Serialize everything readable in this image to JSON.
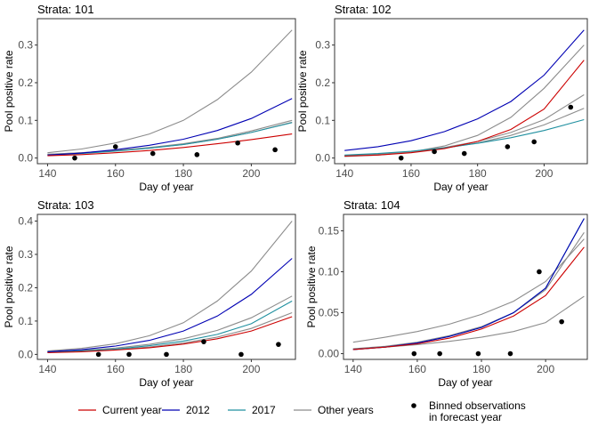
{
  "figure": {
    "xlabel": "Day of year",
    "ylabel": "Pool positive rate"
  },
  "legend": {
    "items": [
      {
        "label": "Current year",
        "color": "#cc0000",
        "kind": "line"
      },
      {
        "label": "2012",
        "color": "#0000b3",
        "kind": "line"
      },
      {
        "label": "2017",
        "color": "#2090a0",
        "kind": "line"
      },
      {
        "label": "Other years",
        "color": "#8c8c8c",
        "kind": "line"
      },
      {
        "label": "Binned observations",
        "label2": "in forecast year",
        "color": "#000000",
        "kind": "point"
      }
    ]
  },
  "chart_data": [
    {
      "type": "line",
      "title": "Strata: 101",
      "xlabel": "Day of year",
      "ylabel": "Pool positive rate",
      "xlim": [
        137,
        213
      ],
      "ylim": [
        -0.015,
        0.37
      ],
      "xticks": [
        140,
        160,
        180,
        200
      ],
      "yticks": [
        0.0,
        0.1,
        0.2,
        0.3
      ],
      "ytick_labels": [
        "0.0",
        "0.1",
        "0.2",
        "0.3"
      ],
      "x": [
        140,
        150,
        160,
        170,
        180,
        190,
        200,
        212
      ],
      "series": [
        {
          "group": "other",
          "values": [
            0.01,
            0.014,
            0.02,
            0.028,
            0.038,
            0.052,
            0.072,
            0.1
          ]
        },
        {
          "group": "other",
          "values": [
            0.01,
            0.014,
            0.019,
            0.026,
            0.036,
            0.05,
            0.068,
            0.095
          ]
        },
        {
          "group": "other",
          "values": [
            0.014,
            0.024,
            0.04,
            0.064,
            0.1,
            0.155,
            0.228,
            0.34
          ]
        },
        {
          "name": "2017",
          "values": [
            0.008,
            0.012,
            0.018,
            0.026,
            0.036,
            0.05,
            0.068,
            0.094
          ]
        },
        {
          "name": "2012",
          "values": [
            0.008,
            0.013,
            0.022,
            0.034,
            0.05,
            0.073,
            0.105,
            0.158
          ]
        },
        {
          "name": "Current year",
          "values": [
            0.006,
            0.009,
            0.014,
            0.02,
            0.028,
            0.038,
            0.049,
            0.064
          ]
        }
      ],
      "observations": {
        "x": [
          148,
          160,
          171,
          184,
          196,
          207
        ],
        "y": [
          0.0,
          0.03,
          0.012,
          0.009,
          0.04,
          0.022
        ]
      }
    },
    {
      "type": "line",
      "title": "Strata: 102",
      "xlabel": "Day of year",
      "ylabel": "Pool positive rate",
      "xlim": [
        137,
        213
      ],
      "ylim": [
        -0.015,
        0.37
      ],
      "xticks": [
        140,
        160,
        180,
        200
      ],
      "yticks": [
        0.0,
        0.1,
        0.2,
        0.3
      ],
      "ytick_labels": [
        "0.0",
        "0.1",
        "0.2",
        "0.3"
      ],
      "x": [
        140,
        150,
        160,
        170,
        180,
        190,
        200,
        212
      ],
      "series": [
        {
          "group": "other",
          "values": [
            0.004,
            0.008,
            0.016,
            0.032,
            0.06,
            0.108,
            0.185,
            0.3
          ]
        },
        {
          "group": "other",
          "values": [
            0.006,
            0.01,
            0.017,
            0.028,
            0.044,
            0.068,
            0.102,
            0.168
          ]
        },
        {
          "group": "other",
          "values": [
            0.006,
            0.01,
            0.016,
            0.026,
            0.04,
            0.06,
            0.088,
            0.132
          ]
        },
        {
          "name": "2017",
          "values": [
            0.008,
            0.012,
            0.018,
            0.027,
            0.039,
            0.054,
            0.073,
            0.102
          ]
        },
        {
          "name": "2012",
          "values": [
            0.02,
            0.03,
            0.046,
            0.07,
            0.104,
            0.15,
            0.22,
            0.34
          ]
        },
        {
          "name": "Current year",
          "values": [
            0.005,
            0.008,
            0.014,
            0.025,
            0.044,
            0.076,
            0.13,
            0.26
          ]
        }
      ],
      "observations": {
        "x": [
          157,
          167,
          176,
          189,
          197,
          208
        ],
        "y": [
          0.0,
          0.017,
          0.012,
          0.03,
          0.043,
          0.135
        ]
      }
    },
    {
      "type": "line",
      "title": "Strata: 103",
      "xlabel": "Day of year",
      "ylabel": "Pool positive rate",
      "xlim": [
        137,
        213
      ],
      "ylim": [
        -0.015,
        0.42
      ],
      "xticks": [
        140,
        160,
        180,
        200
      ],
      "yticks": [
        0.0,
        0.1,
        0.2,
        0.3,
        0.4
      ],
      "ytick_labels": [
        "0.0",
        "0.1",
        "0.2",
        "0.3",
        "0.4"
      ],
      "x": [
        140,
        150,
        160,
        170,
        180,
        190,
        200,
        212
      ],
      "series": [
        {
          "group": "other",
          "values": [
            0.01,
            0.018,
            0.032,
            0.056,
            0.095,
            0.16,
            0.25,
            0.4
          ]
        },
        {
          "group": "other",
          "values": [
            0.008,
            0.012,
            0.019,
            0.03,
            0.047,
            0.072,
            0.11,
            0.175
          ]
        },
        {
          "group": "other",
          "values": [
            0.006,
            0.009,
            0.014,
            0.022,
            0.034,
            0.052,
            0.078,
            0.125
          ]
        },
        {
          "name": "2017",
          "values": [
            0.006,
            0.01,
            0.016,
            0.026,
            0.04,
            0.06,
            0.092,
            0.16
          ]
        },
        {
          "name": "2012",
          "values": [
            0.008,
            0.014,
            0.025,
            0.042,
            0.07,
            0.115,
            0.18,
            0.288
          ]
        },
        {
          "name": "Current year",
          "values": [
            0.005,
            0.008,
            0.013,
            0.02,
            0.031,
            0.047,
            0.07,
            0.113
          ]
        }
      ],
      "observations": {
        "x": [
          155,
          164,
          175,
          186,
          197,
          208
        ],
        "y": [
          0.0,
          0.0,
          0.0,
          0.038,
          0.0,
          0.03
        ]
      }
    },
    {
      "type": "line",
      "title": "Strata: 104",
      "xlabel": "Day of year",
      "ylabel": "Pool positive rate",
      "xlim": [
        137,
        213
      ],
      "ylim": [
        -0.007,
        0.17
      ],
      "xticks": [
        140,
        160,
        180,
        200
      ],
      "yticks": [
        0.0,
        0.05,
        0.1,
        0.15
      ],
      "ytick_labels": [
        "0.00",
        "0.05",
        "0.10",
        "0.15"
      ],
      "x": [
        140,
        150,
        160,
        170,
        180,
        190,
        200,
        212
      ],
      "series": [
        {
          "group": "other",
          "values": [
            0.006,
            0.008,
            0.011,
            0.015,
            0.02,
            0.027,
            0.038,
            0.07
          ]
        },
        {
          "group": "other",
          "values": [
            0.014,
            0.02,
            0.027,
            0.036,
            0.048,
            0.064,
            0.088,
            0.14
          ]
        },
        {
          "group": "other",
          "values": [
            0.006,
            0.009,
            0.014,
            0.022,
            0.033,
            0.05,
            0.078,
            0.148
          ]
        },
        {
          "name": "2017",
          "values": [
            0.005,
            0.008,
            0.013,
            0.021,
            0.032,
            0.05,
            0.08,
            0.165
          ]
        },
        {
          "name": "2012",
          "values": [
            0.005,
            0.008,
            0.013,
            0.021,
            0.032,
            0.05,
            0.08,
            0.165
          ]
        },
        {
          "name": "Current year",
          "values": [
            0.005,
            0.008,
            0.012,
            0.019,
            0.03,
            0.046,
            0.071,
            0.13
          ]
        }
      ],
      "observations": {
        "x": [
          159,
          167,
          179,
          189,
          198,
          205
        ],
        "y": [
          0.0,
          0.0,
          0.0,
          0.0,
          0.1,
          0.039
        ]
      }
    }
  ]
}
